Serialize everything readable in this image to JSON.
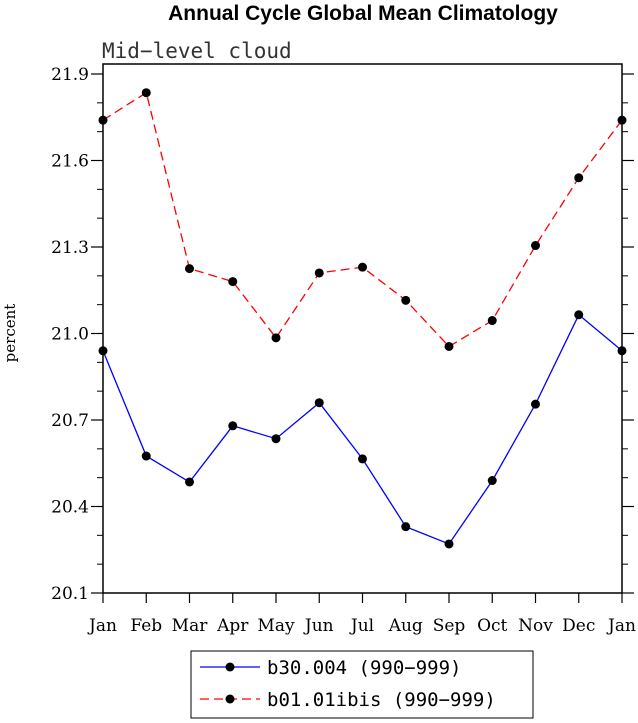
{
  "chart_data": {
    "type": "line",
    "title": "Annual Cycle Global Mean Climatology",
    "subtitle": "Mid−level cloud",
    "ylabel": "percent",
    "xlabel": "",
    "ylim": [
      20.1,
      21.95
    ],
    "yticks": [
      20.1,
      20.4,
      20.7,
      21.0,
      21.3,
      21.6,
      21.9
    ],
    "ytick_labels": [
      "20.1",
      "20.4",
      "20.7",
      "21.0",
      "21.3",
      "21.6",
      "21.9"
    ],
    "categories": [
      "Jan",
      "Feb",
      "Mar",
      "Apr",
      "May",
      "Jun",
      "Jul",
      "Aug",
      "Sep",
      "Oct",
      "Nov",
      "Dec",
      "Jan"
    ],
    "legend_position": "bottom-center",
    "grid": false,
    "series": [
      {
        "name": "b30.004 (990−999)",
        "color": "#0000ff",
        "dash": "solid",
        "values": [
          20.94,
          20.575,
          20.485,
          20.68,
          20.635,
          20.76,
          20.565,
          20.33,
          20.27,
          20.49,
          20.755,
          21.065,
          20.94
        ]
      },
      {
        "name": "b01.01ibis (990−999)",
        "color": "#ff0000",
        "dash": "dashed",
        "values": [
          21.74,
          21.835,
          21.225,
          21.18,
          20.985,
          21.21,
          21.23,
          21.115,
          20.955,
          21.045,
          21.305,
          21.54,
          21.74
        ]
      }
    ]
  }
}
